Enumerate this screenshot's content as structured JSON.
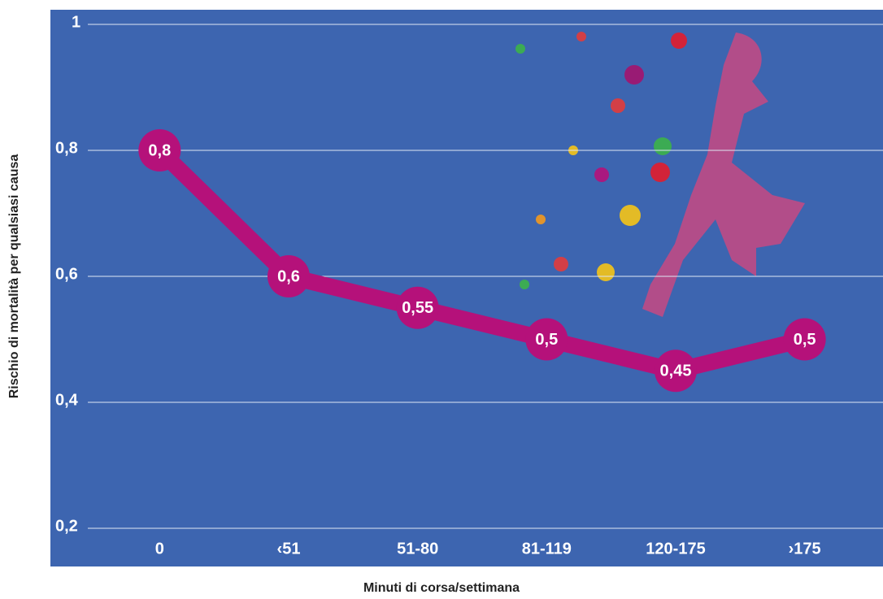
{
  "chart_data": {
    "type": "line",
    "categories": [
      "0",
      "‹51",
      "51-80",
      "81-119",
      "120-175",
      "›175"
    ],
    "values": [
      0.8,
      0.6,
      0.55,
      0.5,
      0.45,
      0.5
    ],
    "value_labels": [
      "0,8",
      "0,6",
      "0,55",
      "0,5",
      "0,45",
      "0,5"
    ],
    "color": "#b5117a",
    "ylim": [
      0.2,
      1
    ],
    "yticks": [
      {
        "value": 0.2,
        "label": "0,2"
      },
      {
        "value": 0.4,
        "label": "0,4"
      },
      {
        "value": 0.6,
        "label": "0,6"
      },
      {
        "value": 0.8,
        "label": "0,8"
      },
      1
    ],
    "grid": true,
    "y_label": "Rischio di mortalità per qualsiasi causa",
    "x_label": "Minuti di corsa/settimana"
  }
}
